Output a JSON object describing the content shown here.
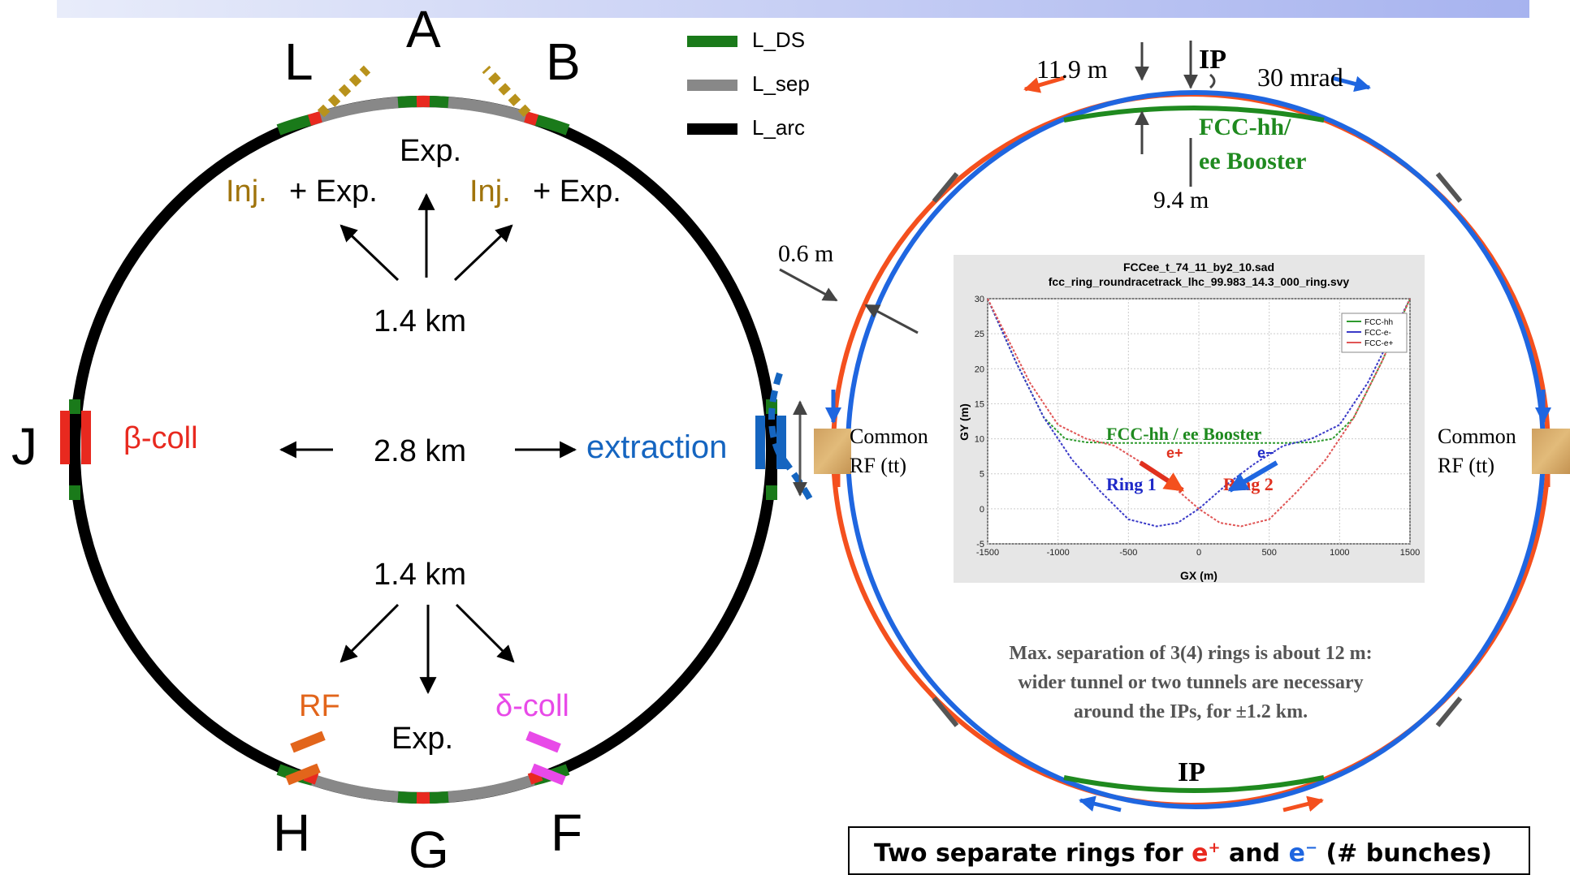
{
  "left_diagram": {
    "section_letters": [
      "L",
      "A",
      "B",
      "J",
      "H",
      "G",
      "F"
    ],
    "legend": [
      {
        "label": "L_DS",
        "color": "#1a7a1a"
      },
      {
        "label": "L_sep",
        "color": "#888888"
      },
      {
        "label": "L_arc",
        "color": "#000000"
      }
    ],
    "labels": {
      "exp_top": "Exp.",
      "inj_left": "Inj.",
      "inj_right": "Inj.",
      "plus_exp": "+ Exp.",
      "dist_top": "1.4 km",
      "dist_mid": "2.8 km",
      "dist_bottom": "1.4 km",
      "beta_coll": "β-coll",
      "extraction": "extraction",
      "rf": "RF",
      "exp_bottom": "Exp.",
      "delta_coll": "δ-coll"
    },
    "colors": {
      "inj": "#a0740c",
      "beta": "#e8291f",
      "extraction": "#1565c0",
      "rf": "#e2651b",
      "delta": "#e84ae8",
      "green": "#1a7a1a",
      "gray": "#888888"
    }
  },
  "right_diagram": {
    "ip_top": "IP",
    "ip_bottom": "IP",
    "dim_11_9": "11.9 m",
    "angle": "30 mrad",
    "booster_line1": "FCC-hh/",
    "booster_line2": "ee Booster",
    "dim_9_4": "9.4 m",
    "dim_0_6": "0.6 m",
    "common_rf": "Common",
    "rf_tt": "RF (tt)",
    "note_line1": "Max. separation of 3(4) rings is about 12 m:",
    "note_line2": "wider tunnel or two tunnels are necessary",
    "note_line3": "around the IPs, for ±1.2 km.",
    "colors": {
      "ring_red": "#f4501e",
      "ring_blue": "#1f66e0",
      "booster": "#1f8a1f"
    }
  },
  "inset_plot": {
    "title_line1": "FCCee_t_74_11_by2_10.sad",
    "title_line2": "fcc_ring_roundracetrack_lhc_99.983_14.3_000_ring.svy",
    "xlabel": "GX (m)",
    "ylabel": "GY (m)",
    "legend": [
      "FCC-hh",
      "FCC-e-",
      "FCC-e+"
    ],
    "booster_label": "FCC-hh / ee Booster",
    "ring1": "Ring 1",
    "ring2": "Ring 2",
    "e_plus": "e+",
    "e_minus": "e−"
  },
  "caption": {
    "prefix": "Two separate rings for ",
    "e_plus": "e",
    "e_plus_sup": "+",
    "and": " and ",
    "e_minus": "e",
    "e_minus_sup": "−",
    "suffix": "  (# bunches)"
  },
  "chart_data": {
    "type": "line",
    "title": "FCCee_t_74_11_by2_10.sad fcc_ring_roundracetrack_lhc_99.983_14.3_000_ring.svy",
    "xlabel": "GX (m)",
    "ylabel": "GY (m)",
    "xlim": [
      -1500,
      1500
    ],
    "ylim": [
      -5,
      30
    ],
    "x_ticks": [
      -1500,
      -1000,
      -500,
      0,
      500,
      1000,
      1500
    ],
    "y_ticks": [
      -5,
      0,
      5,
      10,
      15,
      20,
      25,
      30
    ],
    "grid": true,
    "legend_position": "top-right",
    "series": [
      {
        "name": "FCC-hh",
        "color": "#2e9a2e",
        "x": [
          -1500,
          -1300,
          -1100,
          -950,
          -800,
          -600,
          -300,
          0,
          300,
          600,
          800,
          950,
          1100,
          1300,
          1500
        ],
        "y": [
          30,
          21,
          13,
          10,
          9.5,
          9.4,
          9.4,
          9.4,
          9.4,
          9.4,
          9.5,
          10,
          13,
          21,
          30
        ]
      },
      {
        "name": "FCC-e-",
        "color": "#3a3ac8",
        "x": [
          -1500,
          -1300,
          -1100,
          -900,
          -700,
          -500,
          -300,
          -150,
          0,
          200,
          400,
          600,
          800,
          1000,
          1200,
          1500
        ],
        "y": [
          30,
          21,
          13,
          7,
          2.5,
          -1.5,
          -2.5,
          -2,
          0,
          3.5,
          6.5,
          9,
          10,
          12,
          18,
          30
        ]
      },
      {
        "name": "FCC-e+",
        "color": "#e05555",
        "x": [
          -1500,
          -1200,
          -1000,
          -800,
          -600,
          -400,
          -200,
          0,
          150,
          300,
          500,
          700,
          900,
          1100,
          1300,
          1500
        ],
        "y": [
          30,
          18,
          12,
          10,
          9,
          6.5,
          3.5,
          0,
          -2,
          -2.5,
          -1.5,
          2.5,
          7,
          13,
          21,
          30
        ]
      }
    ]
  }
}
